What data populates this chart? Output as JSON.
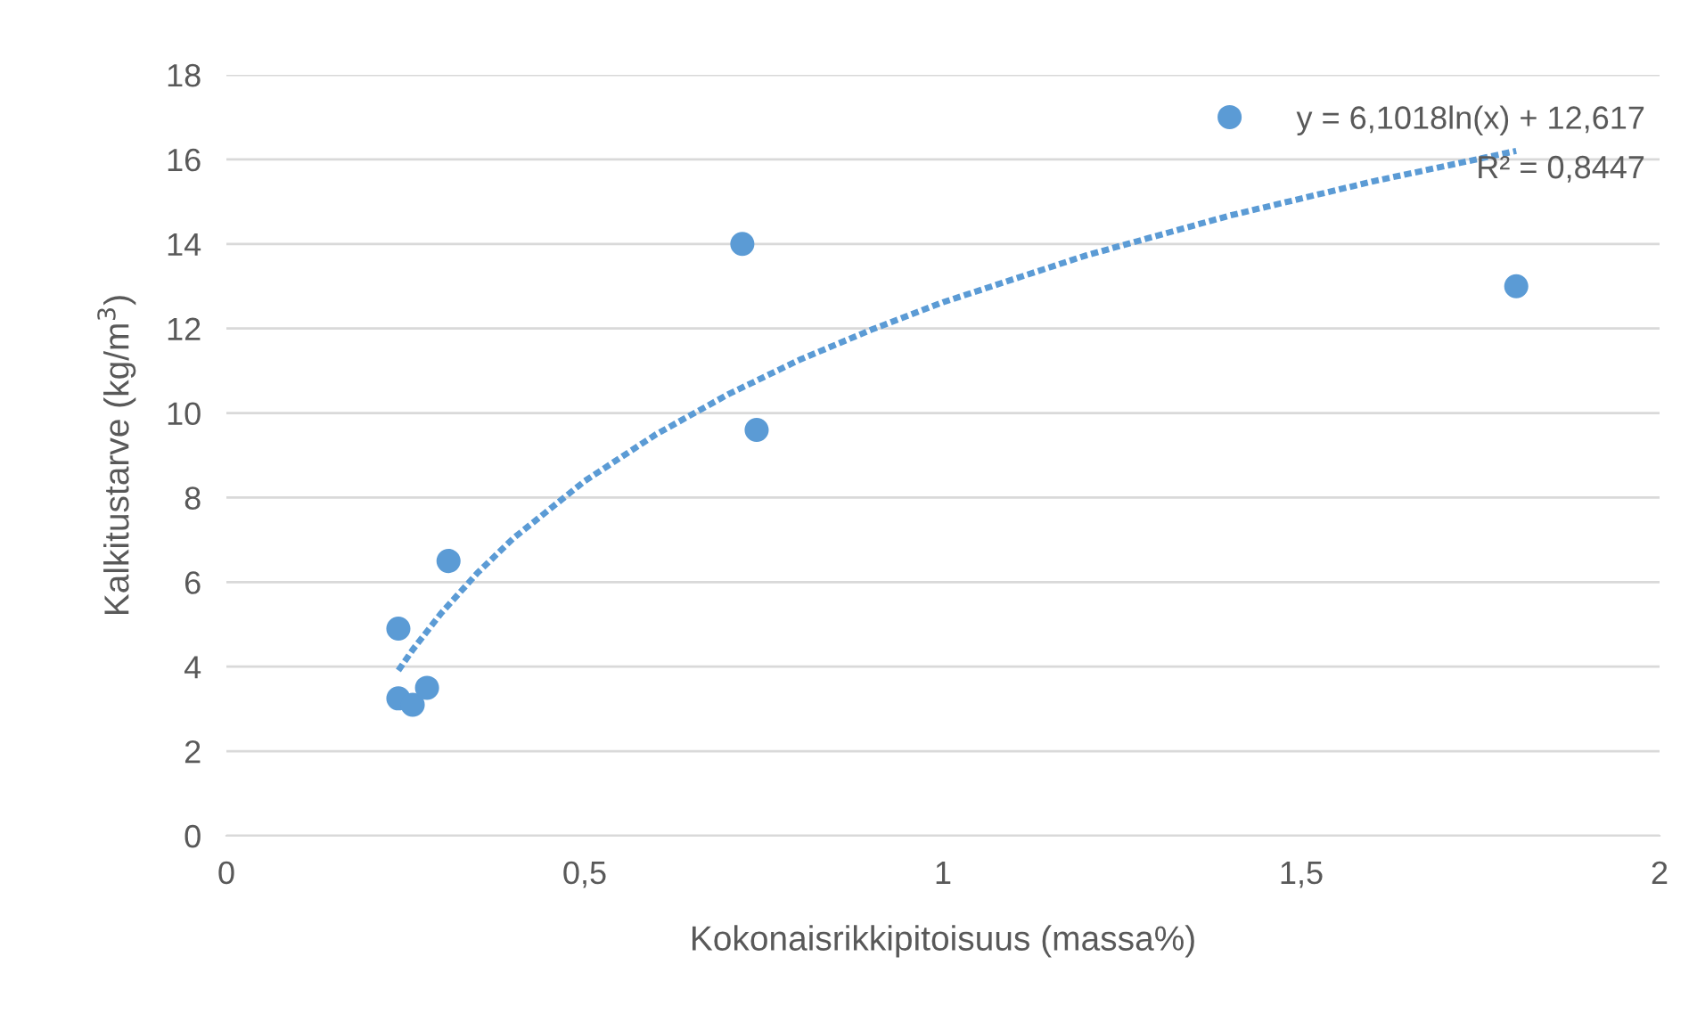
{
  "chart_data": {
    "type": "scatter",
    "xlabel": "Kokonaisrikkipitoisuus (massa%)",
    "ylabel": "Kalkitustarve (kg/m$^{3}$)",
    "xlim": [
      0,
      2
    ],
    "xticks": [
      0,
      {
        "value": 0.5,
        "label": "0,5"
      },
      1,
      {
        "value": 1.5,
        "label": "1,5"
      },
      2
    ],
    "ylim": [
      0,
      18
    ],
    "yticks": [
      0,
      2,
      4,
      6,
      8,
      10,
      12,
      14,
      16,
      18
    ],
    "grid": "y",
    "legend": false,
    "series": [
      {
        "color": "#5b9bd5",
        "marker": "circle",
        "x": [
          0.24,
          0.24,
          0.26,
          0.28,
          0.31,
          0.72,
          0.74,
          1.4,
          1.8
        ],
        "values": [
          4.9,
          3.25,
          3.1,
          3.5,
          6.5,
          14.0,
          9.6,
          17.0,
          13.0
        ]
      },
      {
        "type": "line",
        "color": "#5b9bd5",
        "line_style": "dotted",
        "marker": "none",
        "x": [
          0.24,
          0.26,
          0.3,
          0.35,
          0.4,
          0.5,
          0.6,
          0.7,
          0.8,
          0.9,
          1.0,
          1.2,
          1.4,
          1.6,
          1.8
        ],
        "values": [
          3.91,
          4.4,
          5.27,
          6.21,
          7.03,
          8.39,
          9.5,
          10.44,
          11.26,
          11.97,
          12.62,
          13.73,
          14.67,
          15.48,
          16.2
        ]
      }
    ],
    "annotations": [
      "y = 6,1018ln(x) + 12,617",
      "R² = 0,8447"
    ]
  }
}
